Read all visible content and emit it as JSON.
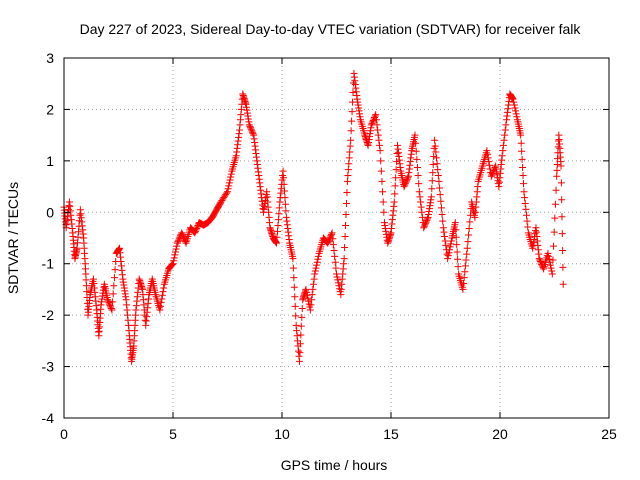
{
  "chart_data": {
    "type": "scatter",
    "title": "Day 227 of 2023, Sidereal Day-to-day VTEC variation (SDTVAR) for receiver falk",
    "xlabel": "GPS time / hours",
    "ylabel": "SDTVAR / TECUs",
    "xlim": [
      0,
      25
    ],
    "ylim": [
      -4,
      3
    ],
    "xticks": [
      0,
      5,
      10,
      15,
      20,
      25
    ],
    "yticks": [
      -4,
      -3,
      -2,
      -1,
      0,
      1,
      2,
      3
    ],
    "grid": true,
    "marker": "+",
    "color": "#ff0000",
    "series_outline": [
      [
        0.0,
        0.1
      ],
      [
        0.1,
        -0.3
      ],
      [
        0.25,
        0.2
      ],
      [
        0.4,
        -0.4
      ],
      [
        0.5,
        -0.9
      ],
      [
        0.6,
        -0.7
      ],
      [
        0.75,
        0.05
      ],
      [
        0.9,
        -0.5
      ],
      [
        1.0,
        -1.2
      ],
      [
        1.1,
        -2.0
      ],
      [
        1.2,
        -1.6
      ],
      [
        1.35,
        -1.3
      ],
      [
        1.5,
        -1.9
      ],
      [
        1.6,
        -2.4
      ],
      [
        1.7,
        -1.8
      ],
      [
        1.85,
        -1.4
      ],
      [
        2.0,
        -1.7
      ],
      [
        2.2,
        -1.9
      ],
      [
        2.4,
        -0.8
      ],
      [
        2.55,
        -0.7
      ],
      [
        2.7,
        -1.3
      ],
      [
        2.85,
        -1.7
      ],
      [
        3.0,
        -2.4
      ],
      [
        3.1,
        -2.9
      ],
      [
        3.2,
        -2.6
      ],
      [
        3.3,
        -1.9
      ],
      [
        3.45,
        -1.3
      ],
      [
        3.6,
        -1.5
      ],
      [
        3.75,
        -2.2
      ],
      [
        3.9,
        -1.6
      ],
      [
        4.05,
        -1.3
      ],
      [
        4.2,
        -1.6
      ],
      [
        4.4,
        -1.9
      ],
      [
        4.6,
        -1.4
      ],
      [
        4.8,
        -1.1
      ],
      [
        5.0,
        -1.0
      ],
      [
        5.2,
        -0.6
      ],
      [
        5.4,
        -0.4
      ],
      [
        5.6,
        -0.6
      ],
      [
        5.8,
        -0.3
      ],
      [
        6.0,
        -0.4
      ],
      [
        6.2,
        -0.2
      ],
      [
        6.4,
        -0.25
      ],
      [
        6.6,
        -0.2
      ],
      [
        6.8,
        -0.1
      ],
      [
        7.0,
        0.05
      ],
      [
        7.2,
        0.2
      ],
      [
        7.5,
        0.4
      ],
      [
        7.7,
        0.8
      ],
      [
        7.9,
        1.1
      ],
      [
        8.05,
        1.6
      ],
      [
        8.2,
        2.3
      ],
      [
        8.35,
        2.1
      ],
      [
        8.5,
        1.7
      ],
      [
        8.7,
        1.5
      ],
      [
        8.85,
        1.0
      ],
      [
        9.0,
        0.5
      ],
      [
        9.15,
        0.0
      ],
      [
        9.3,
        0.4
      ],
      [
        9.45,
        -0.3
      ],
      [
        9.6,
        -0.5
      ],
      [
        9.75,
        -0.6
      ],
      [
        9.9,
        0.2
      ],
      [
        10.05,
        0.8
      ],
      [
        10.2,
        -0.1
      ],
      [
        10.35,
        -0.6
      ],
      [
        10.5,
        -0.9
      ],
      [
        10.65,
        -2.2
      ],
      [
        10.8,
        -2.9
      ],
      [
        10.95,
        -1.7
      ],
      [
        11.1,
        -1.5
      ],
      [
        11.3,
        -1.9
      ],
      [
        11.5,
        -1.2
      ],
      [
        11.7,
        -0.8
      ],
      [
        11.9,
        -0.5
      ],
      [
        12.1,
        -0.6
      ],
      [
        12.3,
        -0.4
      ],
      [
        12.5,
        -1.2
      ],
      [
        12.7,
        -1.6
      ],
      [
        12.85,
        -0.9
      ],
      [
        13.0,
        0.6
      ],
      [
        13.15,
        1.4
      ],
      [
        13.3,
        2.7
      ],
      [
        13.45,
        2.2
      ],
      [
        13.6,
        1.8
      ],
      [
        13.8,
        1.5
      ],
      [
        13.95,
        1.3
      ],
      [
        14.1,
        1.7
      ],
      [
        14.3,
        1.9
      ],
      [
        14.5,
        1.2
      ],
      [
        14.7,
        -0.2
      ],
      [
        14.85,
        -0.6
      ],
      [
        15.0,
        -0.4
      ],
      [
        15.15,
        0.2
      ],
      [
        15.3,
        1.3
      ],
      [
        15.45,
        0.8
      ],
      [
        15.6,
        0.5
      ],
      [
        15.8,
        0.7
      ],
      [
        15.95,
        1.2
      ],
      [
        16.1,
        1.5
      ],
      [
        16.3,
        0.4
      ],
      [
        16.5,
        -0.3
      ],
      [
        16.7,
        -0.1
      ],
      [
        16.85,
        0.3
      ],
      [
        17.0,
        1.4
      ],
      [
        17.2,
        0.6
      ],
      [
        17.4,
        -0.3
      ],
      [
        17.6,
        -0.9
      ],
      [
        17.8,
        -0.5
      ],
      [
        17.95,
        -0.2
      ],
      [
        18.1,
        -1.2
      ],
      [
        18.3,
        -1.5
      ],
      [
        18.5,
        -0.7
      ],
      [
        18.7,
        0.2
      ],
      [
        18.85,
        -0.1
      ],
      [
        19.0,
        0.6
      ],
      [
        19.2,
        0.9
      ],
      [
        19.4,
        1.2
      ],
      [
        19.6,
        0.7
      ],
      [
        19.8,
        0.9
      ],
      [
        19.95,
        0.5
      ],
      [
        20.1,
        1.1
      ],
      [
        20.3,
        1.8
      ],
      [
        20.45,
        2.3
      ],
      [
        20.6,
        2.2
      ],
      [
        20.8,
        1.8
      ],
      [
        20.95,
        1.5
      ],
      [
        21.1,
        0.4
      ],
      [
        21.3,
        -0.4
      ],
      [
        21.5,
        -0.7
      ],
      [
        21.65,
        -0.3
      ],
      [
        21.8,
        -0.9
      ],
      [
        22.0,
        -1.1
      ],
      [
        22.2,
        -0.8
      ],
      [
        22.4,
        -1.2
      ],
      [
        22.6,
        0.7
      ],
      [
        22.7,
        1.5
      ],
      [
        22.8,
        0.9
      ],
      [
        22.9,
        -1.4
      ]
    ]
  }
}
